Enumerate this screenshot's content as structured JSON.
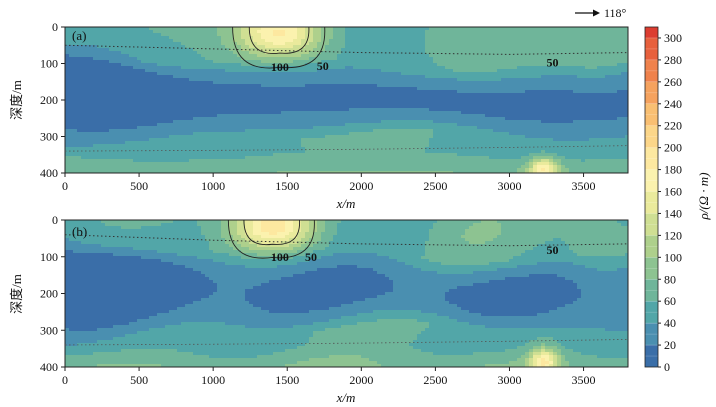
{
  "direction_label": "118°",
  "chart_data": [
    {
      "type": "heatmap",
      "panel_label": "(a)",
      "xlabel": "x/m",
      "ylabel": "深度/m",
      "xlim": [
        0,
        3800
      ],
      "ylim": [
        400,
        0
      ],
      "x_ticks": [
        0,
        500,
        1000,
        1500,
        2000,
        2500,
        3000,
        3500
      ],
      "y_ticks": [
        0,
        100,
        200,
        300,
        400
      ],
      "grid": false,
      "contour_labels": [
        {
          "text": "100",
          "x": 1450,
          "depth": 120
        },
        {
          "text": "50",
          "x": 1740,
          "depth": 118
        },
        {
          "text": "50",
          "x": 3290,
          "depth": 108
        }
      ],
      "high_resistivity_anomalies": [
        {
          "x_center": 1450,
          "x_range": [
            1050,
            1800
          ],
          "depth_range": [
            0,
            110
          ],
          "peak_resistivity": 170
        },
        {
          "x_center": 3230,
          "x_range": [
            3100,
            3350
          ],
          "depth_range": [
            360,
            400
          ],
          "peak_resistivity": 150
        }
      ],
      "low_resistivity_layer": {
        "depth_range": [
          110,
          330
        ],
        "resistivity": 10
      },
      "dotted_boundary_depths": {
        "x": [
          0,
          1000,
          2000,
          3000,
          3800
        ],
        "depth": [
          50,
          60,
          70,
          75,
          70
        ]
      }
    },
    {
      "type": "heatmap",
      "panel_label": "(b)",
      "xlabel": "x/m",
      "ylabel": "深度/m",
      "xlim": [
        0,
        3800
      ],
      "ylim": [
        400,
        0
      ],
      "x_ticks": [
        0,
        500,
        1000,
        1500,
        2000,
        2500,
        3000,
        3500
      ],
      "y_ticks": [
        0,
        100,
        200,
        300,
        400
      ],
      "grid": false,
      "contour_labels": [
        {
          "text": "100",
          "x": 1450,
          "depth": 112
        },
        {
          "text": "50",
          "x": 1660,
          "depth": 112
        },
        {
          "text": "50",
          "x": 3290,
          "depth": 92
        }
      ],
      "high_resistivity_anomalies": [
        {
          "x_center": 1400,
          "x_range": [
            1050,
            1750
          ],
          "depth_range": [
            0,
            100
          ],
          "peak_resistivity": 175
        },
        {
          "x_center": 3230,
          "x_range": [
            3100,
            3350
          ],
          "depth_range": [
            350,
            400
          ],
          "peak_resistivity": 150
        }
      ],
      "low_resistivity_layer": {
        "depth_range": [
          100,
          330
        ],
        "resistivity": 10
      },
      "dotted_boundary_depths": {
        "x": [
          0,
          1000,
          2000,
          3000,
          3800
        ],
        "depth": [
          40,
          55,
          65,
          70,
          65
        ]
      }
    }
  ],
  "colorbar": {
    "label": "ρ/(Ω · m)",
    "min": 0,
    "max": 310,
    "tick_labels": [
      "0",
      "20",
      "40",
      "60",
      "80",
      "100",
      "120",
      "140",
      "160",
      "180",
      "200",
      "220",
      "240",
      "260",
      "280",
      "300"
    ],
    "colors": [
      "#3a6ea8",
      "#4a8fb0",
      "#52a6a8",
      "#6fb59a",
      "#8dc391",
      "#aed08c",
      "#cfdf93",
      "#eaea9c",
      "#fbf2ae",
      "#fde8a0",
      "#fcd689",
      "#f9bf72",
      "#f5a25e",
      "#ef824c",
      "#e7603d",
      "#dc3d30"
    ]
  }
}
